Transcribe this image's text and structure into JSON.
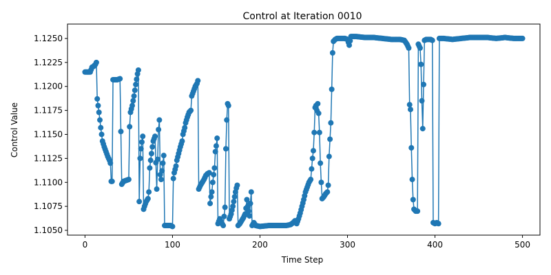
{
  "chart_data": {
    "type": "line",
    "title": "Control at Iteration 0010",
    "xlabel": "Time Step",
    "ylabel": "Control Value",
    "xlim": [
      -20,
      520
    ],
    "ylim": [
      1.1045,
      1.1265
    ],
    "x_ticks": [
      0,
      100,
      200,
      300,
      400,
      500
    ],
    "y_ticks": [
      1.105,
      1.1075,
      1.11,
      1.1125,
      1.115,
      1.1175,
      1.12,
      1.1225,
      1.125
    ],
    "grid": false,
    "legend": "none",
    "series_color": "#1f77b4",
    "marker": "circle",
    "anchors": [
      [
        0,
        1.1215
      ],
      [
        3,
        1.1215
      ],
      [
        6,
        1.1215
      ],
      [
        8,
        1.122
      ],
      [
        10,
        1.1221
      ],
      [
        12,
        1.1223
      ],
      [
        13,
        1.1225
      ],
      [
        14,
        1.1187
      ],
      [
        15,
        1.118
      ],
      [
        16,
        1.1173
      ],
      [
        17,
        1.1165
      ],
      [
        18,
        1.1157
      ],
      [
        19,
        1.115
      ],
      [
        20,
        1.1143
      ],
      [
        22,
        1.1137
      ],
      [
        24,
        1.1132
      ],
      [
        26,
        1.1127
      ],
      [
        28,
        1.1123
      ],
      [
        29,
        1.112
      ],
      [
        30,
        1.1101
      ],
      [
        31,
        1.1101
      ],
      [
        32,
        1.1207
      ],
      [
        34,
        1.1207
      ],
      [
        37,
        1.1207
      ],
      [
        40,
        1.1208
      ],
      [
        42,
        1.1098
      ],
      [
        44,
        1.1101
      ],
      [
        50,
        1.1103
      ],
      [
        51,
        1.1158
      ],
      [
        52,
        1.1173
      ],
      [
        54,
        1.118
      ],
      [
        56,
        1.119
      ],
      [
        58,
        1.1202
      ],
      [
        60,
        1.1213
      ],
      [
        61,
        1.1217
      ],
      [
        62,
        1.108
      ],
      [
        63,
        1.1125
      ],
      [
        64,
        1.1135
      ],
      [
        65,
        1.1142
      ],
      [
        66,
        1.1148
      ],
      [
        67,
        1.1072
      ],
      [
        68,
        1.1075
      ],
      [
        70,
        1.108
      ],
      [
        72,
        1.1083
      ],
      [
        73,
        1.109
      ],
      [
        74,
        1.1115
      ],
      [
        75,
        1.1123
      ],
      [
        76,
        1.113
      ],
      [
        77,
        1.1137
      ],
      [
        78,
        1.1143
      ],
      [
        80,
        1.1148
      ],
      [
        82,
        1.1093
      ],
      [
        84,
        1.1155
      ],
      [
        85,
        1.1165
      ],
      [
        86,
        1.1108
      ],
      [
        87,
        1.1103
      ],
      [
        88,
        1.1112
      ],
      [
        89,
        1.112
      ],
      [
        90,
        1.1128
      ],
      [
        91,
        1.1055
      ],
      [
        95,
        1.1055
      ],
      [
        98,
        1.1055
      ],
      [
        100,
        1.1054
      ],
      [
        101,
        1.1104
      ],
      [
        102,
        1.111
      ],
      [
        104,
        1.1117
      ],
      [
        105,
        1.1123
      ],
      [
        107,
        1.113
      ],
      [
        109,
        1.1137
      ],
      [
        111,
        1.1143
      ],
      [
        112,
        1.115
      ],
      [
        114,
        1.1157
      ],
      [
        115,
        1.1162
      ],
      [
        117,
        1.1168
      ],
      [
        119,
        1.1173
      ],
      [
        121,
        1.1175
      ],
      [
        122,
        1.119
      ],
      [
        124,
        1.1195
      ],
      [
        126,
        1.12
      ],
      [
        128,
        1.1203
      ],
      [
        129,
        1.1206
      ],
      [
        130,
        1.1093
      ],
      [
        132,
        1.1097
      ],
      [
        134,
        1.11
      ],
      [
        136,
        1.1103
      ],
      [
        138,
        1.1107
      ],
      [
        140,
        1.1109
      ],
      [
        142,
        1.111
      ],
      [
        143,
        1.1078
      ],
      [
        144,
        1.1085
      ],
      [
        145,
        1.109
      ],
      [
        146,
        1.11
      ],
      [
        147,
        1.1108
      ],
      [
        148,
        1.1115
      ],
      [
        149,
        1.1132
      ],
      [
        150,
        1.1138
      ],
      [
        151,
        1.1146
      ],
      [
        152,
        1.1057
      ],
      [
        154,
        1.1062
      ],
      [
        156,
        1.1058
      ],
      [
        158,
        1.1055
      ],
      [
        160,
        1.1074
      ],
      [
        161,
        1.1135
      ],
      [
        162,
        1.1165
      ],
      [
        163,
        1.1182
      ],
      [
        164,
        1.118
      ],
      [
        165,
        1.1062
      ],
      [
        167,
        1.1067
      ],
      [
        169,
        1.1075
      ],
      [
        170,
        1.108
      ],
      [
        171,
        1.1085
      ],
      [
        172,
        1.109
      ],
      [
        173,
        1.1094
      ],
      [
        174,
        1.1097
      ],
      [
        175,
        1.1055
      ],
      [
        177,
        1.1057
      ],
      [
        179,
        1.106
      ],
      [
        181,
        1.1063
      ],
      [
        183,
        1.1067
      ],
      [
        184,
        1.1073
      ],
      [
        185,
        1.1082
      ],
      [
        186,
        1.1075
      ],
      [
        187,
        1.107
      ],
      [
        188,
        1.1065
      ],
      [
        189,
        1.1078
      ],
      [
        190,
        1.109
      ],
      [
        191,
        1.1055
      ],
      [
        193,
        1.1058
      ],
      [
        195,
        1.1055
      ],
      [
        200,
        1.1054
      ],
      [
        210,
        1.1055
      ],
      [
        220,
        1.1055
      ],
      [
        230,
        1.1055
      ],
      [
        235,
        1.1056
      ],
      [
        238,
        1.1058
      ],
      [
        240,
        1.106
      ],
      [
        242,
        1.1057
      ],
      [
        244,
        1.1062
      ],
      [
        246,
        1.1068
      ],
      [
        248,
        1.1075
      ],
      [
        250,
        1.1082
      ],
      [
        252,
        1.109
      ],
      [
        254,
        1.1095
      ],
      [
        256,
        1.11
      ],
      [
        258,
        1.1103
      ],
      [
        260,
        1.1125
      ],
      [
        261,
        1.1133
      ],
      [
        262,
        1.1152
      ],
      [
        263,
        1.1178
      ],
      [
        264,
        1.118
      ],
      [
        265,
        1.1175
      ],
      [
        266,
        1.1182
      ],
      [
        267,
        1.1172
      ],
      [
        268,
        1.1152
      ],
      [
        269,
        1.112
      ],
      [
        270,
        1.11
      ],
      [
        271,
        1.1083
      ],
      [
        273,
        1.1085
      ],
      [
        275,
        1.1088
      ],
      [
        277,
        1.109
      ],
      [
        278,
        1.1097
      ],
      [
        279,
        1.1127
      ],
      [
        280,
        1.1145
      ],
      [
        281,
        1.1162
      ],
      [
        282,
        1.1197
      ],
      [
        283,
        1.1235
      ],
      [
        284,
        1.1247
      ],
      [
        286,
        1.1249
      ],
      [
        288,
        1.125
      ],
      [
        291,
        1.125
      ],
      [
        294,
        1.125
      ],
      [
        297,
        1.125
      ],
      [
        300,
        1.1249
      ],
      [
        302,
        1.1243
      ],
      [
        304,
        1.1252
      ],
      [
        310,
        1.1252
      ],
      [
        320,
        1.1251
      ],
      [
        330,
        1.1251
      ],
      [
        340,
        1.125
      ],
      [
        350,
        1.1249
      ],
      [
        360,
        1.1249
      ],
      [
        365,
        1.1248
      ],
      [
        368,
        1.1244
      ],
      [
        370,
        1.124
      ],
      [
        371,
        1.1181
      ],
      [
        372,
        1.1176
      ],
      [
        373,
        1.1136
      ],
      [
        374,
        1.1103
      ],
      [
        375,
        1.1082
      ],
      [
        376,
        1.1072
      ],
      [
        378,
        1.107
      ],
      [
        380,
        1.107
      ],
      [
        381,
        1.1244
      ],
      [
        382,
        1.1242
      ],
      [
        383,
        1.124
      ],
      [
        384,
        1.1223
      ],
      [
        385,
        1.1185
      ],
      [
        386,
        1.1156
      ],
      [
        388,
        1.1248
      ],
      [
        390,
        1.1249
      ],
      [
        395,
        1.1249
      ],
      [
        397,
        1.1248
      ],
      [
        398,
        1.1058
      ],
      [
        400,
        1.1057
      ],
      [
        402,
        1.1058
      ],
      [
        404,
        1.1057
      ],
      [
        405,
        1.125
      ],
      [
        410,
        1.125
      ],
      [
        420,
        1.1249
      ],
      [
        430,
        1.125
      ],
      [
        440,
        1.1251
      ],
      [
        450,
        1.1251
      ],
      [
        460,
        1.1251
      ],
      [
        470,
        1.125
      ],
      [
        480,
        1.1251
      ],
      [
        490,
        1.125
      ],
      [
        500,
        1.125
      ]
    ]
  }
}
